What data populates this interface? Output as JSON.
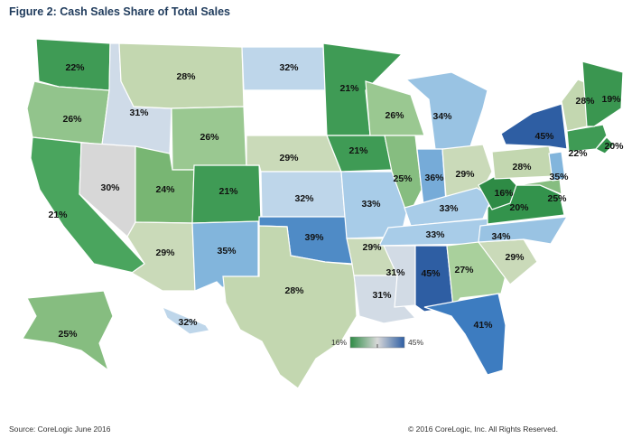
{
  "title": "Figure 2: Cash Sales Share of Total Sales",
  "source": "Source: CoreLogic June 2016",
  "copyright": "© 2016 CoreLogic, Inc. All Rights Reserved.",
  "legend": {
    "min_label": "16%",
    "max_label": "45%",
    "min_color": "#2e8b45",
    "mid_color": "#d9d9d9",
    "max_color": "#2e5ea3"
  },
  "states": [
    {
      "id": "WA",
      "value": "22%",
      "color": "#3f9b55"
    },
    {
      "id": "OR",
      "value": "26%",
      "color": "#92c48c"
    },
    {
      "id": "CA",
      "value": "21%",
      "color": "#4aa55e"
    },
    {
      "id": "ID",
      "value": "31%",
      "color": "#cfdbe8"
    },
    {
      "id": "NV",
      "value": "30%",
      "color": "#d7d7d7"
    },
    {
      "id": "MT",
      "value": "28%",
      "color": "#c3d7b0"
    },
    {
      "id": "WY",
      "value": "26%",
      "color": "#9ac891"
    },
    {
      "id": "UT",
      "value": "24%",
      "color": "#78b673"
    },
    {
      "id": "CO",
      "value": "21%",
      "color": "#3f9b55"
    },
    {
      "id": "AZ",
      "value": "29%",
      "color": "#cadab9"
    },
    {
      "id": "NM",
      "value": "35%",
      "color": "#82b5dc"
    },
    {
      "id": "ND",
      "value": "32%",
      "color": "#bed6ea"
    },
    {
      "id": "SD",
      "value": "",
      "color": "#ffffff"
    },
    {
      "id": "NE",
      "value": "29%",
      "color": "#cadab9"
    },
    {
      "id": "KS",
      "value": "32%",
      "color": "#bed6ea"
    },
    {
      "id": "OK",
      "value": "39%",
      "color": "#4f8bc6"
    },
    {
      "id": "TX",
      "value": "28%",
      "color": "#c3d7b0"
    },
    {
      "id": "MN",
      "value": "21%",
      "color": "#3f9b55"
    },
    {
      "id": "IA",
      "value": "21%",
      "color": "#3f9b55"
    },
    {
      "id": "MO",
      "value": "33%",
      "color": "#a8cce8"
    },
    {
      "id": "AR",
      "value": "29%",
      "color": "#cadab9"
    },
    {
      "id": "LA",
      "value": "31%",
      "color": "#d2dbe5"
    },
    {
      "id": "WI",
      "value": "26%",
      "color": "#9ac891"
    },
    {
      "id": "IL",
      "value": "25%",
      "color": "#86bd80"
    },
    {
      "id": "MI",
      "value": "34%",
      "color": "#99c3e3"
    },
    {
      "id": "IN",
      "value": "36%",
      "color": "#76abd8"
    },
    {
      "id": "OH",
      "value": "29%",
      "color": "#cadab9"
    },
    {
      "id": "KY",
      "value": "33%",
      "color": "#a8cce8"
    },
    {
      "id": "TN",
      "value": "33%",
      "color": "#a8cce8"
    },
    {
      "id": "MS",
      "value": "31%",
      "color": "#d2dbe5"
    },
    {
      "id": "AL",
      "value": "45%",
      "color": "#2e5ea3"
    },
    {
      "id": "GA",
      "value": "27%",
      "color": "#a9d09c"
    },
    {
      "id": "FL",
      "value": "41%",
      "color": "#3d7cc0"
    },
    {
      "id": "SC",
      "value": "29%",
      "color": "#cadab9"
    },
    {
      "id": "NC",
      "value": "34%",
      "color": "#99c3e3"
    },
    {
      "id": "VA",
      "value": "20%",
      "color": "#33934c"
    },
    {
      "id": "WV",
      "value": "16%",
      "color": "#2e8b45"
    },
    {
      "id": "MD",
      "value": "25%",
      "color": "#86bd80"
    },
    {
      "id": "PA",
      "value": "28%",
      "color": "#c3d7b0"
    },
    {
      "id": "NY",
      "value": "45%",
      "color": "#2e5ea3"
    },
    {
      "id": "NJ",
      "value": "35%",
      "color": "#82b5dc"
    },
    {
      "id": "CT_MA",
      "value": "22%",
      "color": "#3f9b55"
    },
    {
      "id": "RI",
      "value": "20%",
      "color": "#33934c"
    },
    {
      "id": "VT_NH",
      "value": "28%",
      "color": "#c3d7b0"
    },
    {
      "id": "ME",
      "value": "19%",
      "color": "#3a9650"
    },
    {
      "id": "AK",
      "value": "25%",
      "color": "#86bd80"
    },
    {
      "id": "HI",
      "value": "32%",
      "color": "#bed6ea"
    }
  ]
}
